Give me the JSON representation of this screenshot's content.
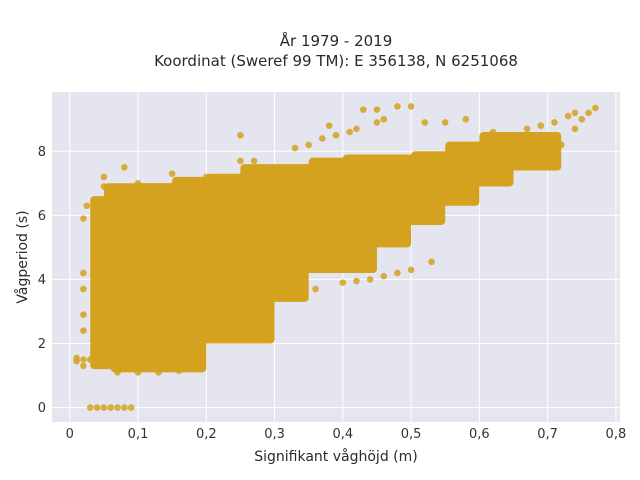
{
  "chart_data": {
    "type": "scatter",
    "title_lines": [
      "År 1979 - 2019",
      "Koordinat (Sweref 99 TM): E 356138, N 6251068"
    ],
    "xlabel": "Signifikant våghöjd (m)",
    "ylabel": "Vågperiod (s)",
    "xlim": [
      -0.026,
      0.806
    ],
    "ylim": [
      -0.45,
      9.85
    ],
    "xticks": [
      0,
      0.1,
      0.2,
      0.3,
      0.4,
      0.5,
      0.6,
      0.7,
      0.8
    ],
    "xtick_labels": [
      "0",
      "0,1",
      "0,2",
      "0,3",
      "0,4",
      "0,5",
      "0,6",
      "0,7",
      "0,8"
    ],
    "yticks": [
      0,
      2,
      4,
      6,
      8
    ],
    "ytick_labels": [
      "0",
      "2",
      "4",
      "6",
      "8"
    ],
    "grid": true,
    "plot_background": "#e5e5ef",
    "marker_color": "#d4a21f",
    "points": [
      [
        0.03,
        0.0
      ],
      [
        0.04,
        0.0
      ],
      [
        0.05,
        0.0
      ],
      [
        0.06,
        0.0
      ],
      [
        0.07,
        0.0
      ],
      [
        0.08,
        0.0
      ],
      [
        0.09,
        0.0
      ],
      [
        0.01,
        1.45
      ],
      [
        0.01,
        1.55
      ],
      [
        0.02,
        1.3
      ],
      [
        0.02,
        1.5
      ],
      [
        0.03,
        1.5
      ],
      [
        0.07,
        1.1
      ],
      [
        0.1,
        1.1
      ],
      [
        0.13,
        1.1
      ],
      [
        0.16,
        1.15
      ],
      [
        0.19,
        1.2
      ],
      [
        0.02,
        5.9
      ],
      [
        0.02,
        4.2
      ],
      [
        0.02,
        3.7
      ],
      [
        0.02,
        2.9
      ],
      [
        0.02,
        2.4
      ],
      [
        0.025,
        6.3
      ],
      [
        0.05,
        7.2
      ],
      [
        0.05,
        6.9
      ],
      [
        0.08,
        7.5
      ],
      [
        0.1,
        7.0
      ],
      [
        0.15,
        7.3
      ],
      [
        0.2,
        7.2
      ],
      [
        0.25,
        8.5
      ],
      [
        0.25,
        7.7
      ],
      [
        0.27,
        7.7
      ],
      [
        0.33,
        8.1
      ],
      [
        0.35,
        8.2
      ],
      [
        0.37,
        8.4
      ],
      [
        0.39,
        8.5
      ],
      [
        0.38,
        8.8
      ],
      [
        0.41,
        8.6
      ],
      [
        0.42,
        8.7
      ],
      [
        0.45,
        8.9
      ],
      [
        0.43,
        9.3
      ],
      [
        0.45,
        9.3
      ],
      [
        0.46,
        9.0
      ],
      [
        0.48,
        9.4
      ],
      [
        0.5,
        9.4
      ],
      [
        0.52,
        8.9
      ],
      [
        0.55,
        8.9
      ],
      [
        0.58,
        9.0
      ],
      [
        0.62,
        8.6
      ],
      [
        0.64,
        8.5
      ],
      [
        0.65,
        8.4
      ],
      [
        0.67,
        8.7
      ],
      [
        0.69,
        8.8
      ],
      [
        0.71,
        8.9
      ],
      [
        0.73,
        9.1
      ],
      [
        0.74,
        9.2
      ],
      [
        0.75,
        9.0
      ],
      [
        0.76,
        9.2
      ],
      [
        0.77,
        9.35
      ],
      [
        0.74,
        8.7
      ],
      [
        0.7,
        8.35
      ],
      [
        0.72,
        8.2
      ],
      [
        0.46,
        4.1
      ],
      [
        0.48,
        4.2
      ],
      [
        0.5,
        4.3
      ],
      [
        0.53,
        4.55
      ],
      [
        0.44,
        4.0
      ],
      [
        0.42,
        3.95
      ],
      [
        0.4,
        3.9
      ],
      [
        0.36,
        3.7
      ],
      [
        0.33,
        3.55
      ],
      [
        0.3,
        3.45
      ],
      [
        0.28,
        3.2
      ],
      [
        0.26,
        3.05
      ],
      [
        0.12,
        2.4
      ],
      [
        0.15,
        2.6
      ],
      [
        0.18,
        2.7
      ],
      [
        0.22,
        2.8
      ],
      [
        0.45,
        6.5
      ],
      [
        0.6,
        7.5
      ],
      [
        0.2,
        4.5
      ],
      [
        0.3,
        5.0
      ],
      [
        0.35,
        5.6
      ],
      [
        0.25,
        3.7
      ],
      [
        0.15,
        5.0
      ],
      [
        0.1,
        4.0
      ],
      [
        0.05,
        3.0
      ],
      [
        0.08,
        5.5
      ],
      [
        0.12,
        6.2
      ],
      [
        0.3,
        6.3
      ],
      [
        0.4,
        6.9
      ],
      [
        0.55,
        7.6
      ],
      [
        0.65,
        8.0
      ]
    ],
    "clusters": [
      {
        "x": [
          0.03,
          0.08
        ],
        "y": [
          1.2,
          6.6
        ]
      },
      {
        "x": [
          0.06,
          0.2
        ],
        "y": [
          1.1,
          6.95
        ]
      },
      {
        "x": [
          0.05,
          0.16
        ],
        "y": [
          1.8,
          7.0
        ]
      },
      {
        "x": [
          0.1,
          0.3
        ],
        "y": [
          2.0,
          7.0
        ]
      },
      {
        "x": [
          0.15,
          0.3
        ],
        "y": [
          2.8,
          7.2
        ]
      },
      {
        "x": [
          0.2,
          0.35
        ],
        "y": [
          3.3,
          7.3
        ]
      },
      {
        "x": [
          0.25,
          0.45
        ],
        "y": [
          4.2,
          7.6
        ]
      },
      {
        "x": [
          0.35,
          0.5
        ],
        "y": [
          5.0,
          7.8
        ]
      },
      {
        "x": [
          0.4,
          0.55
        ],
        "y": [
          5.7,
          7.9
        ]
      },
      {
        "x": [
          0.5,
          0.6
        ],
        "y": [
          6.3,
          8.0
        ]
      },
      {
        "x": [
          0.55,
          0.65
        ],
        "y": [
          6.9,
          8.3
        ]
      },
      {
        "x": [
          0.6,
          0.72
        ],
        "y": [
          7.4,
          8.6
        ]
      }
    ]
  }
}
